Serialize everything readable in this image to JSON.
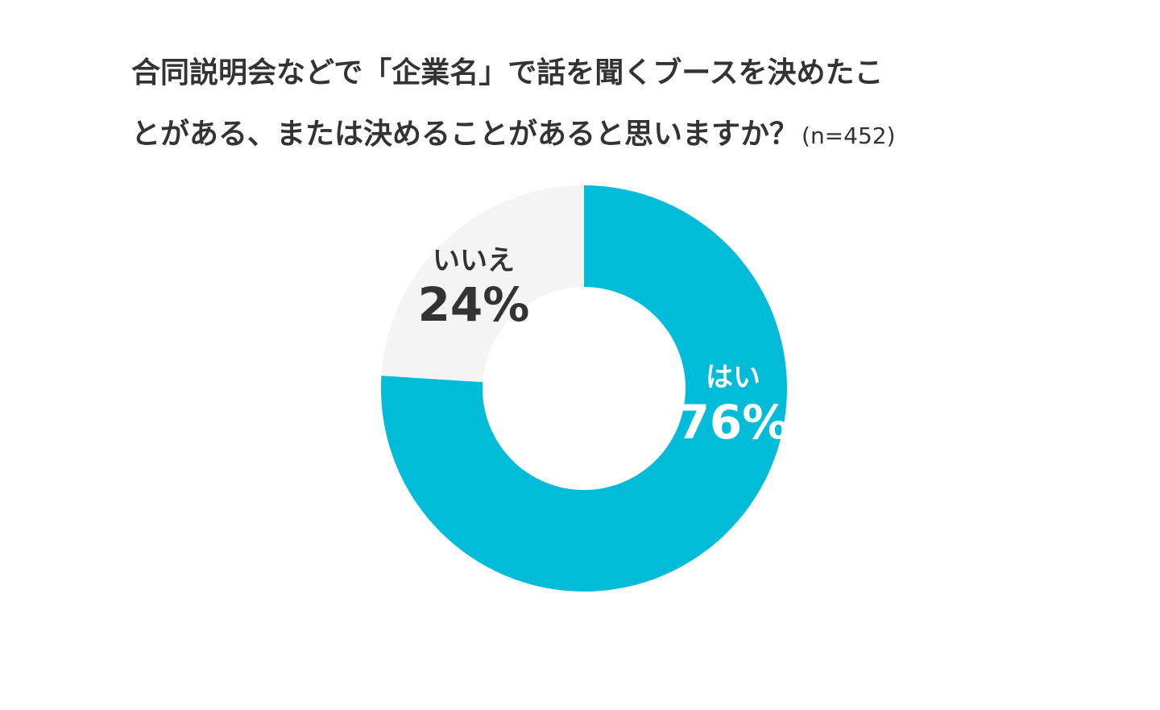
{
  "chart_data": {
    "type": "donut",
    "title_lines": [
      "合同説明会などで「企業名」で話を聞くブースを決めたこ",
      "とがある、または決めることがあると思いますか？"
    ],
    "subtitle": "(n=452)",
    "categories": [
      "はい",
      "いいえ"
    ],
    "values": [
      76,
      24
    ],
    "value_labels": [
      "76%",
      "24%"
    ],
    "colors": [
      "#00bcd9",
      "#f4f4f4"
    ]
  }
}
